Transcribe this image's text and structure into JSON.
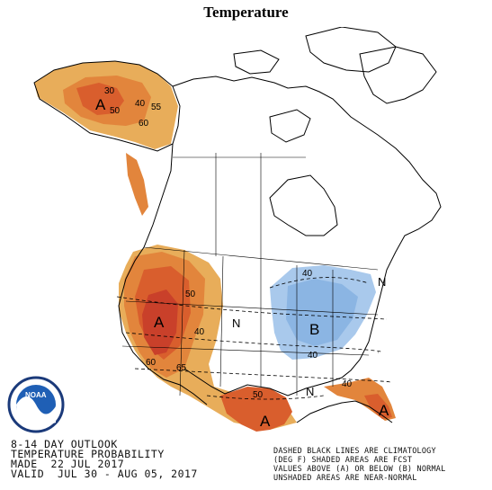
{
  "title": "Temperature",
  "outlook": {
    "line1": "8-14 DAY OUTLOOK",
    "line2": "TEMPERATURE PROBABILITY",
    "line3": "MADE  22 JUL 2017",
    "line4": "VALID  JUL 30 - AUG 05, 2017"
  },
  "legend": {
    "line1": "DASHED BLACK LINES ARE CLIMATOLOGY",
    "line2": "(DEG F) SHADED AREAS ARE FCST",
    "line3": "VALUES ABOVE (A) OR BELOW (B) NORMAL",
    "line4": "UNSHADED AREAS ARE NEAR-NORMAL"
  },
  "logo_text": "NOAA",
  "map_labels": {
    "a_alaska": "A",
    "a_west": "A",
    "a_texas": "A",
    "a_florida": "A",
    "b_midwest": "B",
    "n_plains": "N",
    "n_southeast": "N",
    "n_northeast": "N",
    "p30": "30",
    "p40_ak": "40",
    "p50_ak": "50",
    "p55_ak": "55",
    "p60_ak": "60",
    "p50_w": "50",
    "p40_w": "40",
    "p60_w": "60",
    "p65_w": "65",
    "p50_s": "50",
    "p40_b": "40",
    "p40_b2": "40",
    "p40_fl": "40"
  },
  "colors": {
    "above_light": "#e8ad5a",
    "above_mid": "#e2853c",
    "above_strong": "#d95e2d",
    "above_max": "#c9402a",
    "below_light": "#a9c9ec",
    "below_mid": "#8bb5e3",
    "water": "#ffffff",
    "land_line": "#000000"
  }
}
